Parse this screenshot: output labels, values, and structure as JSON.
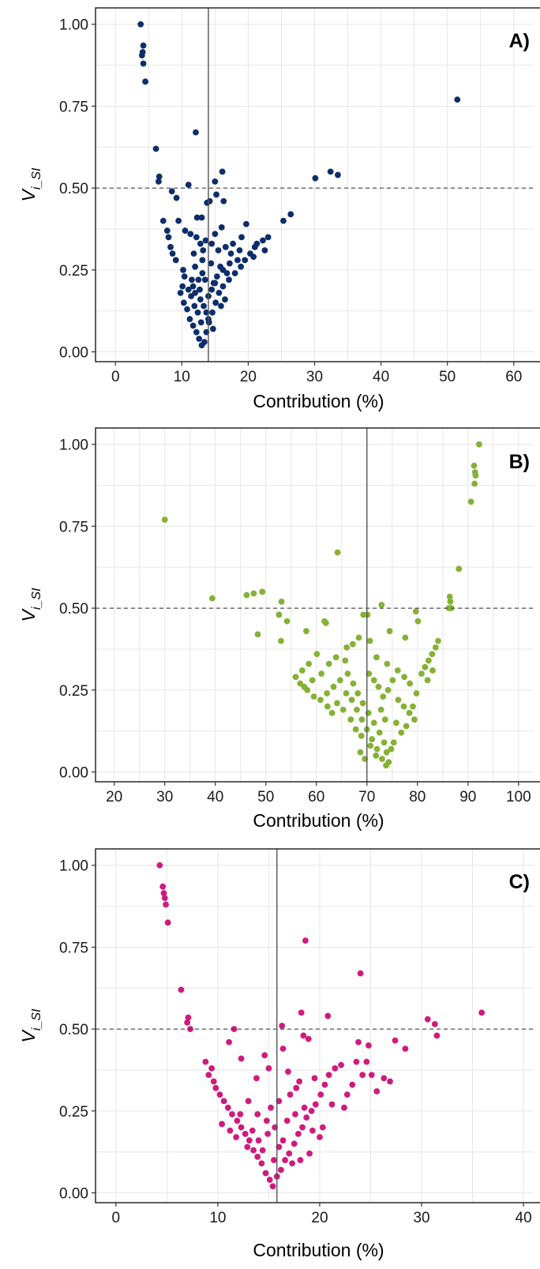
{
  "chart_data": [
    {
      "type": "scatter",
      "panel_label": "A)",
      "xlabel": "Contribution (%)",
      "ylabel_main": "V",
      "ylabel_sub": "i_SI",
      "xlim": [
        -3,
        63
      ],
      "ylim": [
        -0.03,
        1.05
      ],
      "xticks": [
        0,
        10,
        20,
        30,
        40,
        50,
        60
      ],
      "yticks": [
        0.0,
        0.25,
        0.5,
        0.75,
        1.0
      ],
      "ytick_labels": [
        "0.00",
        "0.25",
        "0.50",
        "0.75",
        "1.00"
      ],
      "vline": 14,
      "hline": 0.5,
      "color": "#0d2d6c",
      "points": [
        [
          3.8,
          1.0
        ],
        [
          4.2,
          0.935
        ],
        [
          4.1,
          0.915
        ],
        [
          4.0,
          0.905
        ],
        [
          4.2,
          0.88
        ],
        [
          4.5,
          0.825
        ],
        [
          51.5,
          0.77
        ],
        [
          12.1,
          0.67
        ],
        [
          6.1,
          0.62
        ],
        [
          16.1,
          0.55
        ],
        [
          32.4,
          0.55
        ],
        [
          33.5,
          0.54
        ],
        [
          30.1,
          0.53
        ],
        [
          6.6,
          0.535
        ],
        [
          6.5,
          0.52
        ],
        [
          15.0,
          0.52
        ],
        [
          14.2,
          0.46
        ],
        [
          11.0,
          0.51
        ],
        [
          8.5,
          0.49
        ],
        [
          9.2,
          0.47
        ],
        [
          15.2,
          0.48
        ],
        [
          26.4,
          0.42
        ],
        [
          25.3,
          0.4
        ],
        [
          19.7,
          0.39
        ],
        [
          16.3,
          0.46
        ],
        [
          13.8,
          0.455
        ],
        [
          12.3,
          0.41
        ],
        [
          13.0,
          0.41
        ],
        [
          7.2,
          0.4
        ],
        [
          7.8,
          0.37
        ],
        [
          8.0,
          0.35
        ],
        [
          8.3,
          0.32
        ],
        [
          8.6,
          0.3
        ],
        [
          9.1,
          0.28
        ],
        [
          9.5,
          0.4
        ],
        [
          10.5,
          0.37
        ],
        [
          11.3,
          0.36
        ],
        [
          12.2,
          0.35
        ],
        [
          13.6,
          0.34
        ],
        [
          14.5,
          0.33
        ],
        [
          15.5,
          0.31
        ],
        [
          16.6,
          0.32
        ],
        [
          17.7,
          0.33
        ],
        [
          18.7,
          0.31
        ],
        [
          19.5,
          0.28
        ],
        [
          20.3,
          0.3
        ],
        [
          21.3,
          0.33
        ],
        [
          22.2,
          0.34
        ],
        [
          23.0,
          0.35
        ],
        [
          20.8,
          0.29
        ],
        [
          17.2,
          0.27
        ],
        [
          16.2,
          0.25
        ],
        [
          15.3,
          0.23
        ],
        [
          14.8,
          0.21
        ],
        [
          13.1,
          0.24
        ],
        [
          12.5,
          0.22
        ],
        [
          11.7,
          0.2
        ],
        [
          10.4,
          0.23
        ],
        [
          10.1,
          0.2
        ],
        [
          9.8,
          0.18
        ],
        [
          10.3,
          0.15
        ],
        [
          10.8,
          0.13
        ],
        [
          11.2,
          0.1
        ],
        [
          11.7,
          0.08
        ],
        [
          12.2,
          0.06
        ],
        [
          12.6,
          0.04
        ],
        [
          13.0,
          0.02
        ],
        [
          13.4,
          0.03
        ],
        [
          13.7,
          0.06
        ],
        [
          14.1,
          0.09
        ],
        [
          14.6,
          0.12
        ],
        [
          15.1,
          0.15
        ],
        [
          15.6,
          0.18
        ],
        [
          16.2,
          0.2
        ],
        [
          17.1,
          0.22
        ],
        [
          18.0,
          0.24
        ],
        [
          18.9,
          0.26
        ],
        [
          13.3,
          0.14
        ],
        [
          12.8,
          0.16
        ],
        [
          12.4,
          0.12
        ],
        [
          11.9,
          0.14
        ],
        [
          11.4,
          0.17
        ],
        [
          11.0,
          0.19
        ],
        [
          12.0,
          0.26
        ],
        [
          13.1,
          0.28
        ],
        [
          14.4,
          0.27
        ],
        [
          15.8,
          0.26
        ],
        [
          16.8,
          0.24
        ],
        [
          14.0,
          0.17
        ],
        [
          14.5,
          0.19
        ],
        [
          15.0,
          0.21
        ],
        [
          14.0,
          0.1
        ],
        [
          13.7,
          0.12
        ],
        [
          12.9,
          0.09
        ],
        [
          12.7,
          0.19
        ],
        [
          13.5,
          0.22
        ],
        [
          15.9,
          0.14
        ],
        [
          16.5,
          0.16
        ],
        [
          14.7,
          0.07
        ],
        [
          12.0,
          0.18
        ],
        [
          11.5,
          0.22
        ],
        [
          10.2,
          0.25
        ],
        [
          11.8,
          0.3
        ],
        [
          13.2,
          0.31
        ],
        [
          12.8,
          0.33
        ],
        [
          15.0,
          0.36
        ],
        [
          16.0,
          0.38
        ],
        [
          17.4,
          0.3
        ],
        [
          18.4,
          0.28
        ],
        [
          19.0,
          0.35
        ],
        [
          21.0,
          0.32
        ],
        [
          22.5,
          0.31
        ]
      ]
    },
    {
      "type": "scatter",
      "panel_label": "B)",
      "xlabel": "Contribution (%)",
      "ylabel_main": "V",
      "ylabel_sub": "i_SI",
      "xlim": [
        16.3,
        103
      ],
      "ylim": [
        -0.03,
        1.05
      ],
      "xticks": [
        20,
        30,
        40,
        50,
        60,
        70,
        80,
        90,
        100
      ],
      "yticks": [
        0.0,
        0.25,
        0.5,
        0.75,
        1.0
      ],
      "ytick_labels": [
        "0.00",
        "0.25",
        "0.50",
        "0.75",
        "1.00"
      ],
      "vline": 70,
      "hline": 0.5,
      "color": "#85b135",
      "points": [
        [
          92.2,
          1.0
        ],
        [
          91.2,
          0.935
        ],
        [
          91.4,
          0.915
        ],
        [
          91.5,
          0.905
        ],
        [
          91.3,
          0.88
        ],
        [
          90.6,
          0.825
        ],
        [
          30.0,
          0.77
        ],
        [
          64.2,
          0.67
        ],
        [
          88.2,
          0.62
        ],
        [
          46.2,
          0.54
        ],
        [
          47.6,
          0.545
        ],
        [
          49.3,
          0.55
        ],
        [
          39.4,
          0.53
        ],
        [
          86.4,
          0.535
        ],
        [
          86.5,
          0.52
        ],
        [
          86.7,
          0.5
        ],
        [
          86.2,
          0.5
        ],
        [
          53.1,
          0.52
        ],
        [
          72.9,
          0.51
        ],
        [
          69.3,
          0.48
        ],
        [
          70.1,
          0.48
        ],
        [
          52.6,
          0.48
        ],
        [
          79.7,
          0.49
        ],
        [
          61.6,
          0.46
        ],
        [
          61.9,
          0.455
        ],
        [
          58.0,
          0.43
        ],
        [
          54.2,
          0.46
        ],
        [
          48.4,
          0.42
        ],
        [
          80.1,
          0.46
        ],
        [
          74.5,
          0.43
        ],
        [
          70.6,
          0.4
        ],
        [
          53.0,
          0.4
        ],
        [
          84.1,
          0.4
        ],
        [
          83.6,
          0.38
        ],
        [
          82.9,
          0.36
        ],
        [
          82.2,
          0.34
        ],
        [
          81.5,
          0.32
        ],
        [
          80.8,
          0.3
        ],
        [
          77.6,
          0.41
        ],
        [
          67.2,
          0.39
        ],
        [
          66.0,
          0.38
        ],
        [
          68.4,
          0.41
        ],
        [
          71.9,
          0.35
        ],
        [
          74.0,
          0.33
        ],
        [
          65.7,
          0.34
        ],
        [
          60.1,
          0.36
        ],
        [
          58.5,
          0.33
        ],
        [
          57.2,
          0.31
        ],
        [
          55.9,
          0.29
        ],
        [
          56.8,
          0.27
        ],
        [
          58.2,
          0.25
        ],
        [
          59.5,
          0.23
        ],
        [
          60.8,
          0.22
        ],
        [
          62.1,
          0.24
        ],
        [
          63.4,
          0.26
        ],
        [
          64.7,
          0.28
        ],
        [
          61.0,
          0.3
        ],
        [
          62.5,
          0.33
        ],
        [
          63.9,
          0.35
        ],
        [
          66.2,
          0.3
        ],
        [
          67.3,
          0.27
        ],
        [
          68.2,
          0.24
        ],
        [
          69.2,
          0.21
        ],
        [
          70.3,
          0.18
        ],
        [
          71.4,
          0.15
        ],
        [
          72.5,
          0.12
        ],
        [
          73.4,
          0.09
        ],
        [
          73.9,
          0.06
        ],
        [
          74.3,
          0.03
        ],
        [
          73.8,
          0.02
        ],
        [
          73.0,
          0.04
        ],
        [
          72.0,
          0.07
        ],
        [
          71.0,
          0.1
        ],
        [
          70.0,
          0.13
        ],
        [
          69.0,
          0.16
        ],
        [
          68.0,
          0.19
        ],
        [
          67.0,
          0.22
        ],
        [
          65.9,
          0.24
        ],
        [
          76.2,
          0.22
        ],
        [
          77.3,
          0.2
        ],
        [
          78.4,
          0.18
        ],
        [
          79.1,
          0.2
        ],
        [
          79.8,
          0.24
        ],
        [
          78.5,
          0.27
        ],
        [
          77.4,
          0.29
        ],
        [
          76.1,
          0.31
        ],
        [
          75.1,
          0.28
        ],
        [
          74.2,
          0.25
        ],
        [
          73.2,
          0.23
        ],
        [
          72.3,
          0.26
        ],
        [
          71.4,
          0.28
        ],
        [
          70.4,
          0.3
        ],
        [
          75.8,
          0.15
        ],
        [
          76.8,
          0.12
        ],
        [
          75.3,
          0.09
        ],
        [
          74.8,
          0.07
        ],
        [
          71.8,
          0.05
        ],
        [
          70.7,
          0.08
        ],
        [
          68.9,
          0.11
        ],
        [
          67.8,
          0.13
        ],
        [
          66.8,
          0.16
        ],
        [
          65.3,
          0.19
        ],
        [
          64.1,
          0.21
        ],
        [
          63.1,
          0.18
        ],
        [
          62.2,
          0.2
        ],
        [
          68.7,
          0.06
        ],
        [
          69.6,
          0.04
        ],
        [
          72.8,
          0.19
        ],
        [
          73.6,
          0.16
        ],
        [
          77.8,
          0.14
        ],
        [
          79.4,
          0.16
        ],
        [
          82.0,
          0.28
        ],
        [
          83.0,
          0.31
        ],
        [
          59.2,
          0.28
        ],
        [
          57.6,
          0.26
        ]
      ]
    },
    {
      "type": "scatter",
      "panel_label": "C)",
      "xlabel": "Contribution (%)",
      "ylabel_main": "V",
      "ylabel_sub": "i_SI",
      "xlim": [
        -2,
        41
      ],
      "ylim": [
        -0.03,
        1.05
      ],
      "xticks": [
        0,
        10,
        20,
        30,
        40
      ],
      "yticks": [
        0.0,
        0.25,
        0.5,
        0.75,
        1.0
      ],
      "ytick_labels": [
        "0.00",
        "0.25",
        "0.50",
        "0.75",
        "1.00"
      ],
      "vline": 15.8,
      "hline": 0.5,
      "color": "#d11a7e",
      "points": [
        [
          4.3,
          1.0
        ],
        [
          4.6,
          0.935
        ],
        [
          4.7,
          0.915
        ],
        [
          4.8,
          0.9
        ],
        [
          4.9,
          0.88
        ],
        [
          5.1,
          0.825
        ],
        [
          18.6,
          0.77
        ],
        [
          24.0,
          0.67
        ],
        [
          6.4,
          0.62
        ],
        [
          18.2,
          0.55
        ],
        [
          35.9,
          0.55
        ],
        [
          20.8,
          0.54
        ],
        [
          7.1,
          0.535
        ],
        [
          7.0,
          0.52
        ],
        [
          7.3,
          0.5
        ],
        [
          16.3,
          0.51
        ],
        [
          30.6,
          0.53
        ],
        [
          31.3,
          0.515
        ],
        [
          31.5,
          0.48
        ],
        [
          18.4,
          0.48
        ],
        [
          18.9,
          0.47
        ],
        [
          27.4,
          0.465
        ],
        [
          28.4,
          0.44
        ],
        [
          23.8,
          0.46
        ],
        [
          24.8,
          0.45
        ],
        [
          11.6,
          0.5
        ],
        [
          11.1,
          0.46
        ],
        [
          16.4,
          0.44
        ],
        [
          14.6,
          0.42
        ],
        [
          12.3,
          0.41
        ],
        [
          13.8,
          0.35
        ],
        [
          8.8,
          0.4
        ],
        [
          9.4,
          0.38
        ],
        [
          9.1,
          0.36
        ],
        [
          9.6,
          0.34
        ],
        [
          9.8,
          0.32
        ],
        [
          10.2,
          0.3
        ],
        [
          10.6,
          0.28
        ],
        [
          11.0,
          0.26
        ],
        [
          11.4,
          0.24
        ],
        [
          11.9,
          0.22
        ],
        [
          12.3,
          0.2
        ],
        [
          12.7,
          0.18
        ],
        [
          13.1,
          0.16
        ],
        [
          13.5,
          0.13
        ],
        [
          13.9,
          0.11
        ],
        [
          14.3,
          0.09
        ],
        [
          14.7,
          0.06
        ],
        [
          15.1,
          0.04
        ],
        [
          15.4,
          0.02
        ],
        [
          15.8,
          0.05
        ],
        [
          16.2,
          0.07
        ],
        [
          16.6,
          0.1
        ],
        [
          17.0,
          0.12
        ],
        [
          17.5,
          0.15
        ],
        [
          17.9,
          0.18
        ],
        [
          18.3,
          0.2
        ],
        [
          18.7,
          0.23
        ],
        [
          19.2,
          0.25
        ],
        [
          19.6,
          0.27
        ],
        [
          20.1,
          0.3
        ],
        [
          20.5,
          0.33
        ],
        [
          20.9,
          0.36
        ],
        [
          21.5,
          0.38
        ],
        [
          22.1,
          0.39
        ],
        [
          22.7,
          0.3
        ],
        [
          23.2,
          0.33
        ],
        [
          23.6,
          0.4
        ],
        [
          24.2,
          0.36
        ],
        [
          25.1,
          0.36
        ],
        [
          25.6,
          0.31
        ],
        [
          26.3,
          0.35
        ],
        [
          26.9,
          0.34
        ],
        [
          13.0,
          0.28
        ],
        [
          13.9,
          0.24
        ],
        [
          14.8,
          0.22
        ],
        [
          15.6,
          0.2
        ],
        [
          16.8,
          0.22
        ],
        [
          17.6,
          0.24
        ],
        [
          18.5,
          0.26
        ],
        [
          19.3,
          0.19
        ],
        [
          20.0,
          0.17
        ],
        [
          17.1,
          0.3
        ],
        [
          16.0,
          0.28
        ],
        [
          15.2,
          0.26
        ],
        [
          12.2,
          0.24
        ],
        [
          12.9,
          0.14
        ],
        [
          14.0,
          0.16
        ],
        [
          14.9,
          0.18
        ],
        [
          16.4,
          0.16
        ],
        [
          17.3,
          0.09
        ],
        [
          18.1,
          0.1
        ],
        [
          19.0,
          0.12
        ],
        [
          20.3,
          0.2
        ],
        [
          21.2,
          0.27
        ],
        [
          14.4,
          0.13
        ],
        [
          13.4,
          0.19
        ],
        [
          11.8,
          0.17
        ],
        [
          15.0,
          0.38
        ],
        [
          16.9,
          0.37
        ],
        [
          18.0,
          0.34
        ],
        [
          19.5,
          0.35
        ],
        [
          10.4,
          0.21
        ],
        [
          11.2,
          0.19
        ],
        [
          15.5,
          0.1
        ],
        [
          16.0,
          0.14
        ],
        [
          17.7,
          0.32
        ],
        [
          24.6,
          0.4
        ],
        [
          22.4,
          0.26
        ]
      ]
    }
  ]
}
